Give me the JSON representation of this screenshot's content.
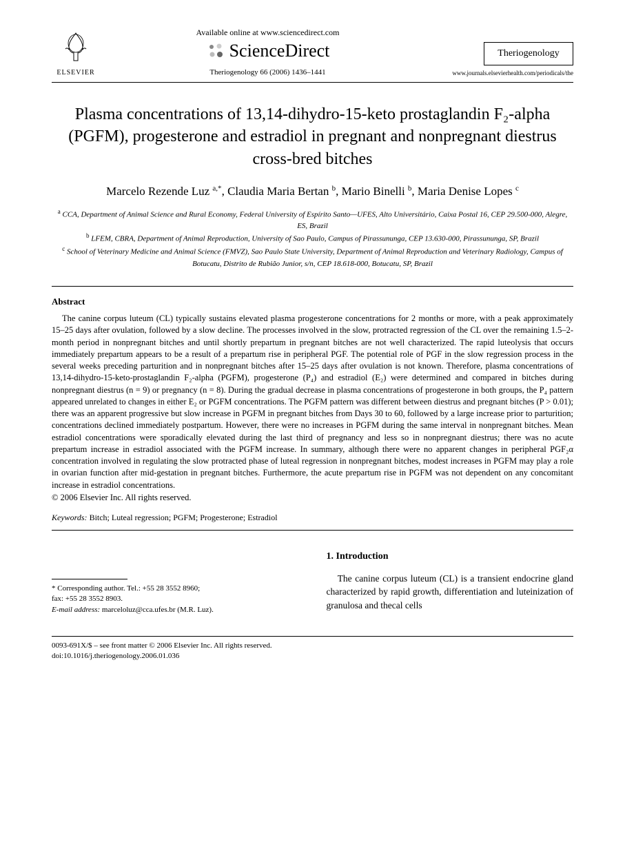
{
  "header": {
    "elsevier": "ELSEVIER",
    "available_online": "Available online at www.sciencedirect.com",
    "sciencedirect": "ScienceDirect",
    "citation": "Theriogenology 66 (2006) 1436–1441",
    "journal_name": "Theriogenology",
    "journal_url": "www.journals.elsevierhealth.com/periodicals/the"
  },
  "title": "Plasma concentrations of 13,14-dihydro-15-keto prostaglandin F₂-alpha (PGFM), progesterone and estradiol in pregnant and nonpregnant diestrus cross-bred bitches",
  "authors_html": "Marcelo Rezende Luz <sup>a,*</sup>, Claudia Maria Bertan <sup>b</sup>, Mario Binelli <sup>b</sup>, Maria Denise Lopes <sup>c</sup>",
  "affiliations": [
    {
      "sup": "a",
      "text": "CCA, Department of Animal Science and Rural Economy, Federal University of Espírito Santo—UFES, Alto Universitário, Caixa Postal 16, CEP 29.500-000, Alegre, ES, Brazil"
    },
    {
      "sup": "b",
      "text": "LFEM, CBRA, Department of Animal Reproduction, University of Sao Paulo, Campus of Pirassununga, CEP 13.630-000, Pirassununga, SP, Brazil"
    },
    {
      "sup": "c",
      "text": "School of Veterinary Medicine and Animal Science (FMVZ), Sao Paulo State University, Department of Animal Reproduction and Veterinary Radiology, Campus of Botucatu, Distrito de Rubião Junior, s/n, CEP 18.618-000, Botucatu, SP, Brazil"
    }
  ],
  "abstract": {
    "heading": "Abstract",
    "body": "The canine corpus luteum (CL) typically sustains elevated plasma progesterone concentrations for 2 months or more, with a peak approximately 15–25 days after ovulation, followed by a slow decline. The processes involved in the slow, protracted regression of the CL over the remaining 1.5–2-month period in nonpregnant bitches and until shortly prepartum in pregnant bitches are not well characterized. The rapid luteolysis that occurs immediately prepartum appears to be a result of a prepartum rise in peripheral PGF. The potential role of PGF in the slow regression process in the several weeks preceding parturition and in nonpregnant bitches after 15–25 days after ovulation is not known. Therefore, plasma concentrations of 13,14-dihydro-15-keto-prostaglandin F₂-alpha (PGFM), progesterone (P₄) and estradiol (E₂) were determined and compared in bitches during nonpregnant diestrus (n = 9) or pregnancy (n = 8). During the gradual decrease in plasma concentrations of progesterone in both groups, the P₄ pattern appeared unrelated to changes in either E₂ or PGFM concentrations. The PGFM pattern was different between diestrus and pregnant bitches (P > 0.01); there was an apparent progressive but slow increase in PGFM in pregnant bitches from Days 30 to 60, followed by a large increase prior to parturition; concentrations declined immediately postpartum. However, there were no increases in PGFM during the same interval in nonpregnant bitches. Mean estradiol concentrations were sporadically elevated during the last third of pregnancy and less so in nonpregnant diestrus; there was no acute prepartum increase in estradiol associated with the PGFM increase. In summary, although there were no apparent changes in peripheral PGF₂α concentration involved in regulating the slow protracted phase of luteal regression in nonpregnant bitches, modest increases in PGFM may play a role in ovarian function after mid-gestation in pregnant bitches. Furthermore, the acute prepartum rise in PGFM was not dependent on any concomitant increase in estradiol concentrations.",
    "copyright": "© 2006 Elsevier Inc. All rights reserved."
  },
  "keywords": {
    "label": "Keywords:",
    "text": "Bitch; Luteal regression; PGFM; Progesterone; Estradiol"
  },
  "footnote": {
    "corr": "* Corresponding author. Tel.: +55 28 3552 8960;",
    "fax": "fax: +55 28 3552 8903.",
    "email_label": "E-mail address:",
    "email": "marceloluz@cca.ufes.br (M.R. Luz)."
  },
  "intro": {
    "heading": "1. Introduction",
    "body": "The canine corpus luteum (CL) is a transient endocrine gland characterized by rapid growth, differentiation and luteinization of granulosa and thecal cells"
  },
  "footer": {
    "line1": "0093-691X/$ – see front matter © 2006 Elsevier Inc. All rights reserved.",
    "line2": "doi:10.1016/j.theriogenology.2006.01.036"
  }
}
